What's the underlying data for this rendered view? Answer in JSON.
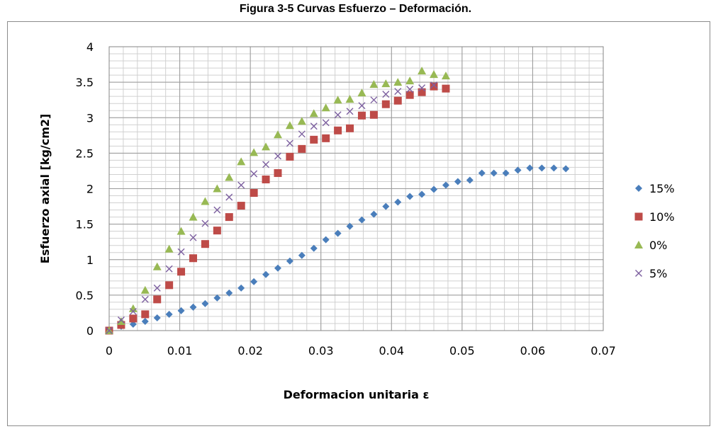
{
  "figure_title": "Figura 3-5 Curvas Esfuerzo – Deformación.",
  "chart_data": {
    "type": "scatter",
    "title": "Figura 3-5 Curvas Esfuerzo – Deformación.",
    "xlabel": "Deformacion unitaria ε",
    "ylabel": "Esfuerzo axial [kg/cm2]",
    "xlim": [
      0,
      0.07
    ],
    "ylim": [
      0,
      4
    ],
    "x_ticks": [
      0,
      0.01,
      0.02,
      0.03,
      0.04,
      0.05,
      0.06,
      0.07
    ],
    "x_tick_labels": [
      "0",
      "0.01",
      "0.02",
      "0.03",
      "0.04",
      "0.05",
      "0.06",
      "0.07"
    ],
    "y_ticks": [
      0,
      0.5,
      1,
      1.5,
      2,
      2.5,
      3,
      3.5,
      4
    ],
    "y_tick_labels": [
      "0",
      "0.5",
      "1",
      "1.5",
      "2",
      "2.5",
      "3",
      "3.5",
      "4"
    ],
    "grid": true,
    "legend_position": "right",
    "series": [
      {
        "name": "15%",
        "marker": "diamond",
        "color": "#4a7ebb",
        "points": [
          [
            0,
            0
          ],
          [
            0.0017,
            0.06
          ],
          [
            0.0034,
            0.09
          ],
          [
            0.0051,
            0.13
          ],
          [
            0.0068,
            0.18
          ],
          [
            0.0085,
            0.23
          ],
          [
            0.0102,
            0.28
          ],
          [
            0.0119,
            0.33
          ],
          [
            0.0136,
            0.38
          ],
          [
            0.0153,
            0.46
          ],
          [
            0.017,
            0.53
          ],
          [
            0.0187,
            0.6
          ],
          [
            0.0205,
            0.69
          ],
          [
            0.0222,
            0.79
          ],
          [
            0.0239,
            0.88
          ],
          [
            0.0256,
            0.98
          ],
          [
            0.0273,
            1.06
          ],
          [
            0.029,
            1.16
          ],
          [
            0.0307,
            1.28
          ],
          [
            0.0324,
            1.37
          ],
          [
            0.0341,
            1.47
          ],
          [
            0.0358,
            1.56
          ],
          [
            0.0375,
            1.64
          ],
          [
            0.0392,
            1.75
          ],
          [
            0.0409,
            1.81
          ],
          [
            0.0426,
            1.89
          ],
          [
            0.0443,
            1.92
          ],
          [
            0.046,
            1.99
          ],
          [
            0.0477,
            2.05
          ],
          [
            0.0494,
            2.1
          ],
          [
            0.0511,
            2.12
          ],
          [
            0.0528,
            2.22
          ],
          [
            0.0545,
            2.22
          ],
          [
            0.0562,
            2.22
          ],
          [
            0.0579,
            2.26
          ],
          [
            0.0596,
            2.29
          ],
          [
            0.0613,
            2.29
          ],
          [
            0.063,
            2.29
          ],
          [
            0.0647,
            2.28
          ]
        ]
      },
      {
        "name": "10%",
        "marker": "square",
        "color": "#be4b48",
        "points": [
          [
            0,
            0
          ],
          [
            0.0017,
            0.08
          ],
          [
            0.0034,
            0.17
          ],
          [
            0.0051,
            0.23
          ],
          [
            0.0068,
            0.44
          ],
          [
            0.0085,
            0.64
          ],
          [
            0.0102,
            0.83
          ],
          [
            0.0119,
            1.02
          ],
          [
            0.0136,
            1.22
          ],
          [
            0.0153,
            1.41
          ],
          [
            0.017,
            1.6
          ],
          [
            0.0187,
            1.76
          ],
          [
            0.0205,
            1.94
          ],
          [
            0.0222,
            2.13
          ],
          [
            0.0239,
            2.22
          ],
          [
            0.0256,
            2.45
          ],
          [
            0.0273,
            2.56
          ],
          [
            0.029,
            2.69
          ],
          [
            0.0307,
            2.71
          ],
          [
            0.0324,
            2.82
          ],
          [
            0.0341,
            2.85
          ],
          [
            0.0358,
            3.03
          ],
          [
            0.0375,
            3.04
          ],
          [
            0.0392,
            3.19
          ],
          [
            0.0409,
            3.24
          ],
          [
            0.0426,
            3.32
          ],
          [
            0.0443,
            3.36
          ],
          [
            0.046,
            3.44
          ],
          [
            0.0477,
            3.41
          ]
        ]
      },
      {
        "name": "0%",
        "marker": "triangle",
        "color": "#98b954",
        "points": [
          [
            0,
            0
          ],
          [
            0.0017,
            0.13
          ],
          [
            0.0034,
            0.31
          ],
          [
            0.0051,
            0.57
          ],
          [
            0.0068,
            0.9
          ],
          [
            0.0085,
            1.15
          ],
          [
            0.0102,
            1.4
          ],
          [
            0.0119,
            1.6
          ],
          [
            0.0136,
            1.82
          ],
          [
            0.0153,
            2.0
          ],
          [
            0.017,
            2.16
          ],
          [
            0.0187,
            2.38
          ],
          [
            0.0205,
            2.51
          ],
          [
            0.0222,
            2.59
          ],
          [
            0.0239,
            2.76
          ],
          [
            0.0256,
            2.89
          ],
          [
            0.0273,
            2.95
          ],
          [
            0.029,
            3.06
          ],
          [
            0.0307,
            3.14
          ],
          [
            0.0324,
            3.25
          ],
          [
            0.0341,
            3.26
          ],
          [
            0.0358,
            3.35
          ],
          [
            0.0375,
            3.47
          ],
          [
            0.0392,
            3.48
          ],
          [
            0.0409,
            3.5
          ],
          [
            0.0426,
            3.52
          ],
          [
            0.0443,
            3.66
          ],
          [
            0.046,
            3.61
          ],
          [
            0.0477,
            3.59
          ]
        ]
      },
      {
        "name": "5%",
        "marker": "x",
        "color": "#7d60a0",
        "points": [
          [
            0,
            0
          ],
          [
            0.0017,
            0.15
          ],
          [
            0.0034,
            0.27
          ],
          [
            0.0051,
            0.44
          ],
          [
            0.0068,
            0.6
          ],
          [
            0.0085,
            0.87
          ],
          [
            0.0102,
            1.11
          ],
          [
            0.0119,
            1.31
          ],
          [
            0.0136,
            1.51
          ],
          [
            0.0153,
            1.7
          ],
          [
            0.017,
            1.88
          ],
          [
            0.0187,
            2.05
          ],
          [
            0.0205,
            2.21
          ],
          [
            0.0222,
            2.34
          ],
          [
            0.0239,
            2.46
          ],
          [
            0.0256,
            2.64
          ],
          [
            0.0273,
            2.77
          ],
          [
            0.029,
            2.88
          ],
          [
            0.0307,
            2.93
          ],
          [
            0.0324,
            3.04
          ],
          [
            0.0341,
            3.09
          ],
          [
            0.0358,
            3.17
          ],
          [
            0.0375,
            3.25
          ],
          [
            0.0392,
            3.33
          ],
          [
            0.0409,
            3.37
          ],
          [
            0.0426,
            3.4
          ],
          [
            0.0443,
            3.42
          ],
          [
            0.046,
            3.46
          ]
        ]
      }
    ]
  }
}
